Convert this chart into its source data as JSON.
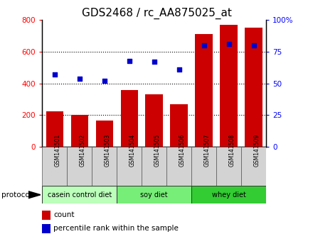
{
  "title": "GDS2468 / rc_AA875025_at",
  "samples": [
    "GSM141501",
    "GSM141502",
    "GSM141503",
    "GSM141504",
    "GSM141505",
    "GSM141506",
    "GSM141507",
    "GSM141508",
    "GSM141509"
  ],
  "counts": [
    225,
    200,
    165,
    360,
    330,
    270,
    710,
    770,
    750
  ],
  "percentile_ranks": [
    57,
    54,
    52,
    68,
    67,
    61,
    80,
    81,
    80
  ],
  "groups": [
    {
      "label": "casein control diet",
      "indices": [
        0,
        1,
        2
      ],
      "color": "#bbffbb"
    },
    {
      "label": "soy diet",
      "indices": [
        3,
        4,
        5
      ],
      "color": "#77ee77"
    },
    {
      "label": "whey diet",
      "indices": [
        6,
        7,
        8
      ],
      "color": "#33cc33"
    }
  ],
  "bar_color": "#cc0000",
  "dot_color": "#0000cc",
  "left_ylim": [
    0,
    800
  ],
  "right_ylim": [
    0,
    100
  ],
  "left_yticks": [
    0,
    200,
    400,
    600,
    800
  ],
  "right_yticks": [
    0,
    25,
    50,
    75,
    100
  ],
  "right_yticklabels": [
    "0",
    "25",
    "50",
    "75",
    "100%"
  ],
  "grid_values": [
    200,
    400,
    600
  ],
  "title_fontsize": 11,
  "protocol_label": "protocol",
  "sample_box_color": "#d3d3d3",
  "legend_count_label": "count",
  "legend_pct_label": "percentile rank within the sample"
}
